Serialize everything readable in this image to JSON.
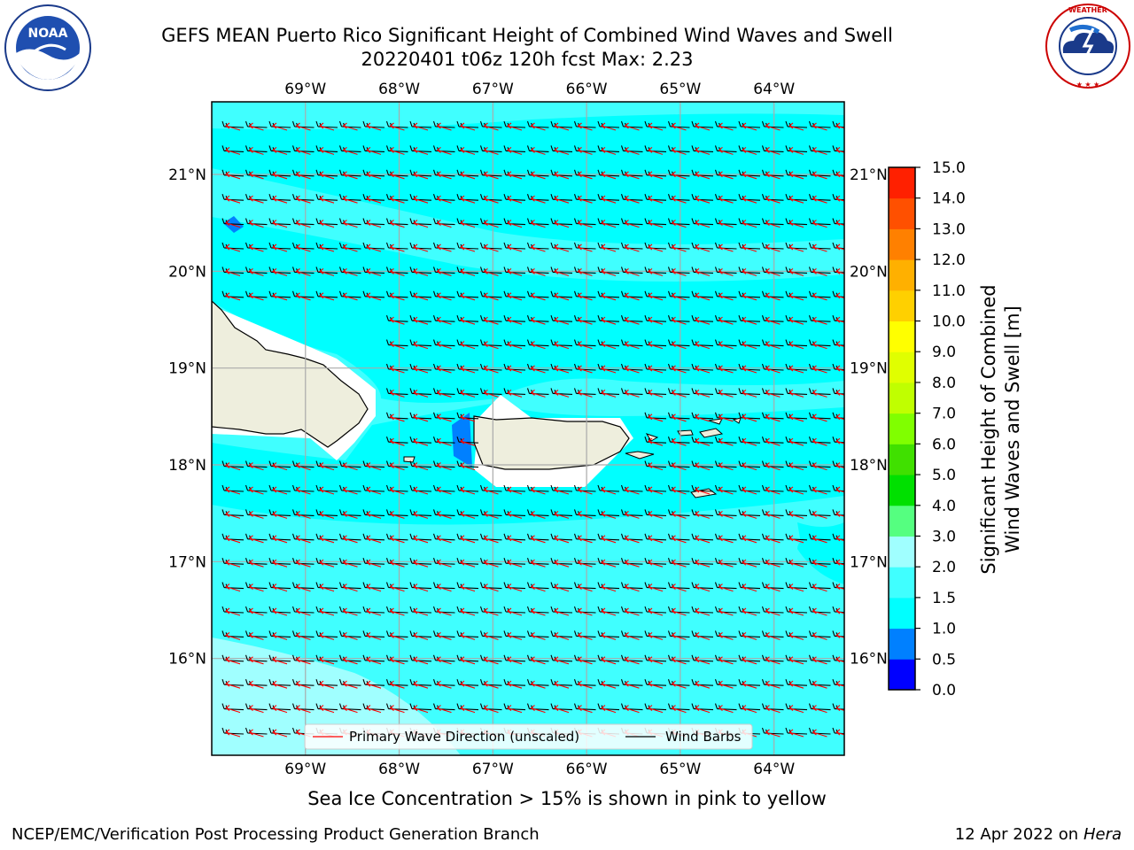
{
  "header": {
    "title_line1": "GEFS MEAN Puerto Rico Significant Height of Combined Wind Waves and Swell",
    "title_line2": "20220401 t06z 120h fcst   Max: 2.23"
  },
  "logos": {
    "left": {
      "name": "noaa-logo",
      "text": "NOAA",
      "ring_text": "NATIONAL OCEANIC AND ATMOSPHERIC ADMINISTRATION · U.S. DEPARTMENT OF COMMERCE"
    },
    "right": {
      "name": "nws-logo",
      "ring_text": "NATIONAL WEATHER SERVICE"
    }
  },
  "map": {
    "lon_labels": [
      "69°W",
      "68°W",
      "67°W",
      "66°W",
      "65°W",
      "64°W"
    ],
    "lat_labels": [
      "21°N",
      "20°N",
      "19°N",
      "18°N",
      "17°N",
      "16°N"
    ],
    "extent": {
      "lon": [
        -70.0,
        -63.25
      ],
      "lat": [
        15.0,
        21.75
      ]
    },
    "ocean_color": "#00ffff",
    "light_color": "#a0ffff",
    "land_color": "#eeeedd",
    "legend": {
      "wave_label": "Primary Wave Direction (unscaled)",
      "barb_label": "Wind Barbs",
      "wave_color": "#ff0000",
      "barb_color": "#000000"
    }
  },
  "colorbar": {
    "label_line1": "Significant Height of Combined",
    "label_line2": "Wind Waves and Swell [m]",
    "ticks": [
      "0.0",
      "0.5",
      "1.0",
      "1.5",
      "2.0",
      "3.0",
      "4.0",
      "5.0",
      "6.0",
      "7.0",
      "8.0",
      "9.0",
      "10.0",
      "11.0",
      "12.0",
      "13.0",
      "14.0",
      "15.0"
    ],
    "colors": [
      "#0000ff",
      "#0080ff",
      "#00ffff",
      "#40ffff",
      "#a0ffff",
      "#55ff80",
      "#00e000",
      "#40e000",
      "#80ff00",
      "#c0ff00",
      "#e0ff00",
      "#ffff00",
      "#ffd000",
      "#ffb000",
      "#ff8000",
      "#ff5000",
      "#ff2000"
    ]
  },
  "notes": {
    "ice": "Sea Ice Concentration > 15% is shown in pink to yellow"
  },
  "footer": {
    "left": "NCEP/EMC/Verification Post Processing Product Generation Branch",
    "right_date": "12 Apr 2022 on ",
    "right_host": "Hera"
  }
}
